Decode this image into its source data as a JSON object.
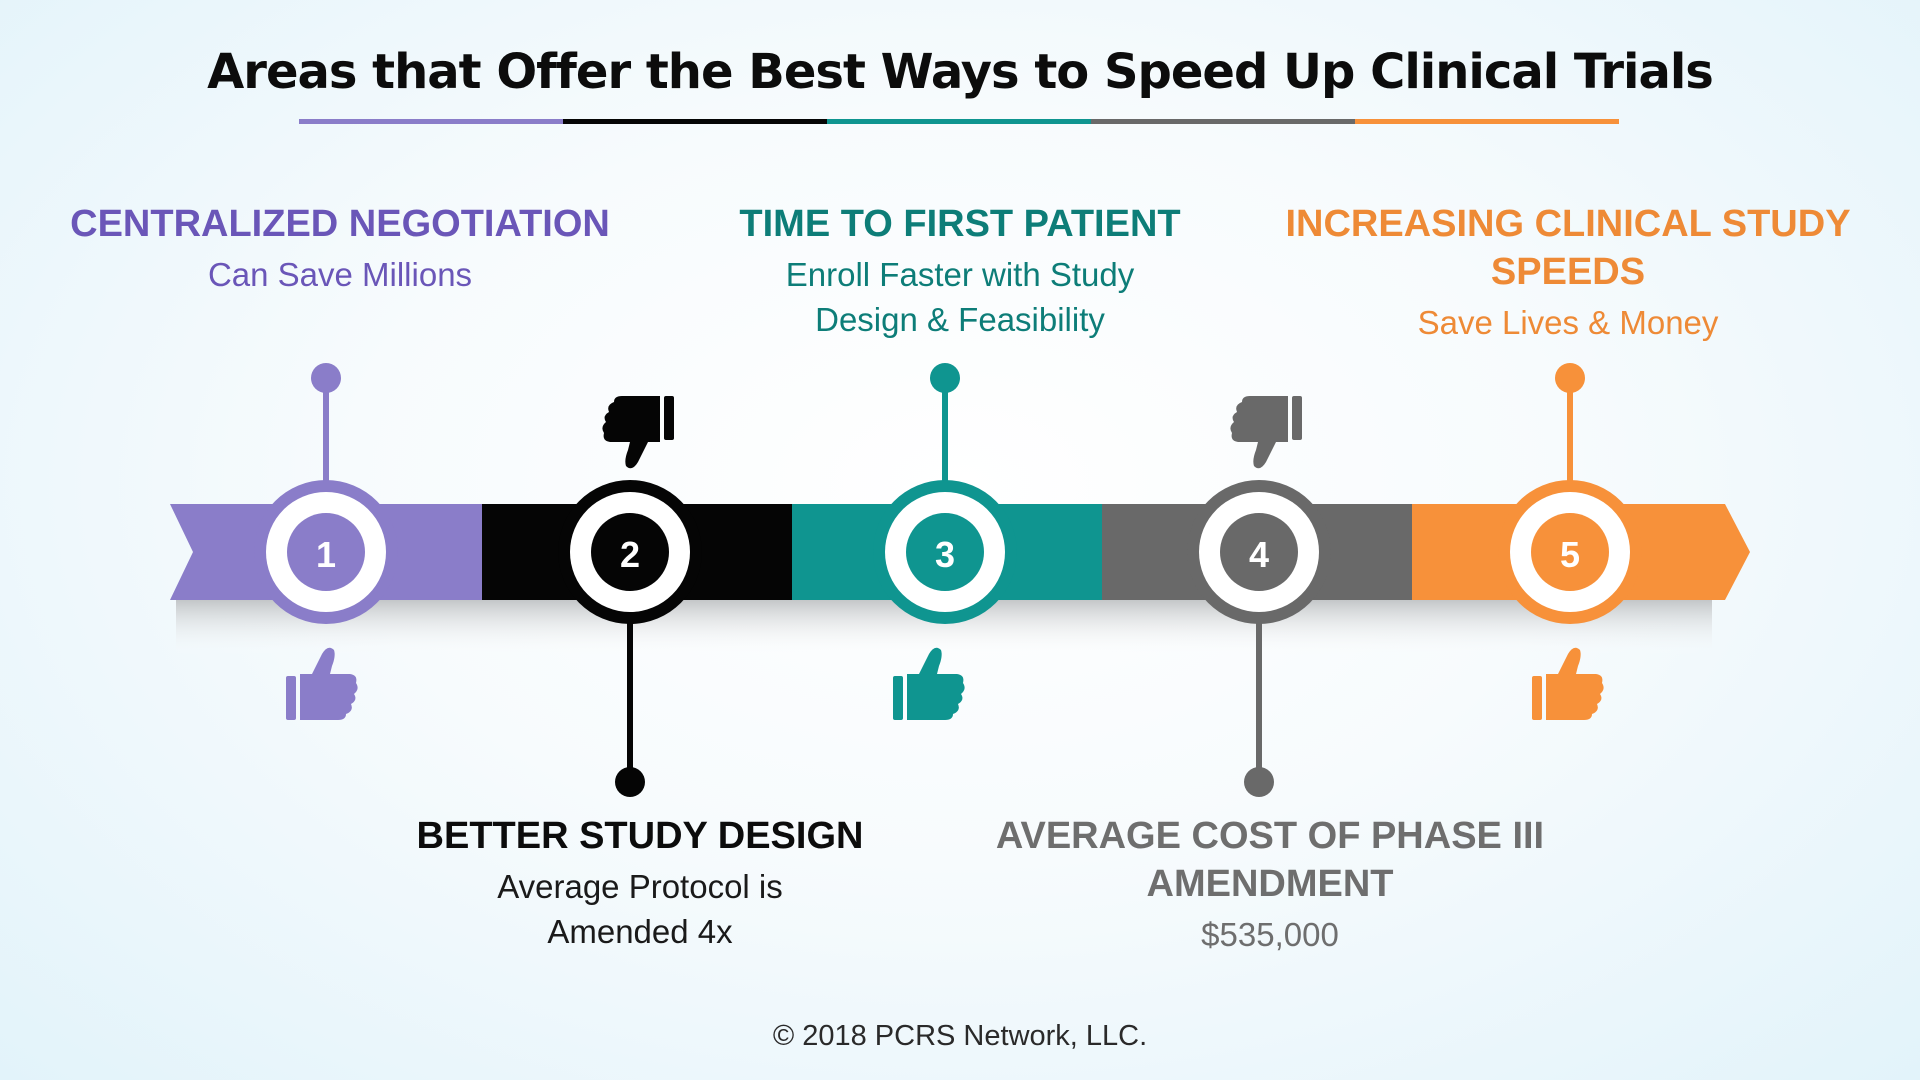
{
  "title": "Areas that Offer the Best Ways to Speed Up Clinical Trials",
  "footer": "© 2018 PCRS Network, LLC.",
  "colors": {
    "purple": "#8a7dc9",
    "black": "#050505",
    "teal": "#0f9590",
    "gray": "#696969",
    "orange": "#f7913a",
    "purple_text": "#6a56b8",
    "teal_text": "#0d7d78",
    "orange_text": "#ee8a36",
    "gray_text": "#6e6e6e"
  },
  "steps": [
    {
      "number": "1",
      "heading": "CENTRALIZED NEGOTIATION",
      "subtext": "Can Save Millions",
      "thumb": "thumbs-up-icon"
    },
    {
      "number": "2",
      "heading": "BETTER STUDY DESIGN",
      "subtext_line1": "Average Protocol is",
      "subtext_line2": "Amended 4x",
      "thumb": "thumbs-down-icon"
    },
    {
      "number": "3",
      "heading": "TIME TO FIRST PATIENT",
      "subtext_line1": "Enroll Faster with Study",
      "subtext_line2": "Design & Feasibility",
      "thumb": "thumbs-up-icon"
    },
    {
      "number": "4",
      "heading_line1": "AVERAGE COST OF PHASE III",
      "heading_line2": "AMENDMENT",
      "subtext": "$535,000",
      "thumb": "thumbs-down-icon"
    },
    {
      "number": "5",
      "heading_line1": "INCREASING CLINICAL STUDY",
      "heading_line2": "SPEEDS",
      "subtext": "Save Lives & Money",
      "thumb": "thumbs-up-icon"
    }
  ]
}
